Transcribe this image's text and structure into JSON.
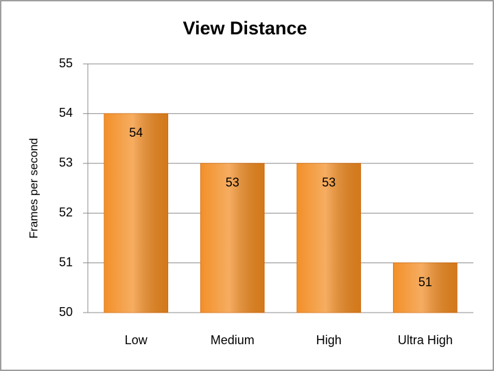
{
  "chart_data": {
    "type": "bar",
    "title": "View Distance",
    "y_label": "Frames per second",
    "categories": [
      "Low",
      "Medium",
      "High",
      "Ultra High"
    ],
    "values": [
      54,
      53,
      53,
      51
    ],
    "color": "#f28a1e",
    "ylim": [
      50,
      55
    ],
    "yticks": [
      50,
      51,
      52,
      53,
      54,
      55
    ],
    "grid": true
  }
}
